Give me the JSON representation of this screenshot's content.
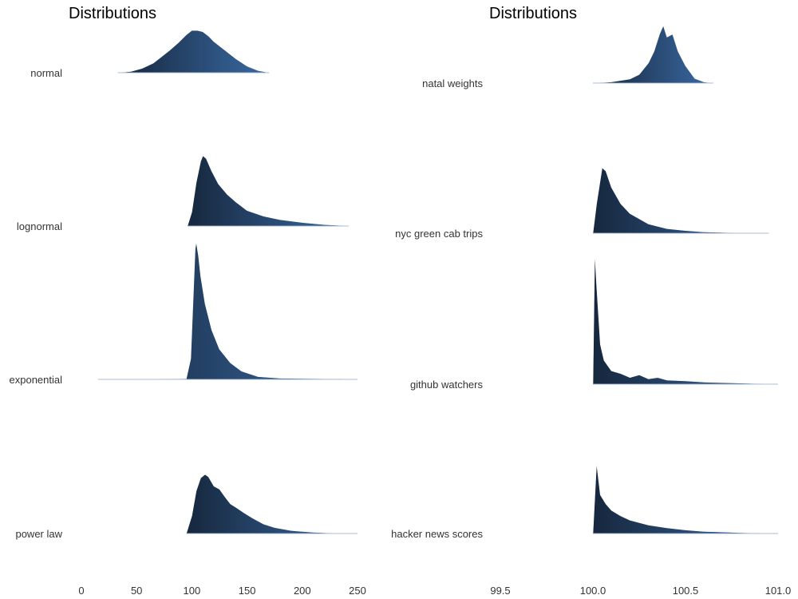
{
  "chart_data": [
    {
      "type": "area",
      "subtype": "ridgeline",
      "title": "Distributions",
      "xlabel": "",
      "ylabel": "",
      "xlim": [
        0,
        250
      ],
      "xticks": [
        0,
        50,
        100,
        150,
        200,
        250
      ],
      "xtick_labels": [
        "0",
        "50",
        "100",
        "150",
        "200",
        "250"
      ],
      "categories": [
        "normal",
        "lognormal",
        "exponential",
        "power law"
      ],
      "series": [
        {
          "name": "normal",
          "x": [
            33,
            45,
            55,
            65,
            72,
            80,
            88,
            95,
            100,
            105,
            110,
            115,
            120,
            130,
            140,
            150,
            160,
            170
          ],
          "density": [
            0,
            0.03,
            0.1,
            0.22,
            0.36,
            0.52,
            0.7,
            0.88,
            0.98,
            0.98,
            0.95,
            0.85,
            0.72,
            0.52,
            0.32,
            0.15,
            0.05,
            0
          ]
        },
        {
          "name": "lognormal",
          "x": [
            96,
            100,
            104,
            108,
            110,
            113,
            118,
            124,
            132,
            140,
            150,
            165,
            180,
            200,
            220,
            240,
            242
          ],
          "density": [
            0,
            0.2,
            0.62,
            0.92,
            1.0,
            0.96,
            0.78,
            0.6,
            0.45,
            0.34,
            0.22,
            0.14,
            0.09,
            0.05,
            0.02,
            0.005,
            0
          ]
        },
        {
          "name": "exponential",
          "x": [
            15,
            50,
            95,
            99,
            101,
            103,
            104,
            106,
            108,
            112,
            118,
            125,
            135,
            145,
            160,
            180,
            230,
            250
          ],
          "density": [
            0,
            0.001,
            0.005,
            0.15,
            0.55,
            0.95,
            1.0,
            0.9,
            0.75,
            0.55,
            0.36,
            0.22,
            0.12,
            0.06,
            0.02,
            0.008,
            0.004,
            0
          ]
        },
        {
          "name": "power law",
          "x": [
            95,
            100,
            104,
            108,
            112,
            115,
            120,
            125,
            130,
            135,
            140,
            148,
            155,
            165,
            175,
            190,
            210,
            230,
            250
          ],
          "density": [
            0,
            0.3,
            0.72,
            0.94,
            1.0,
            0.96,
            0.8,
            0.75,
            0.62,
            0.5,
            0.44,
            0.34,
            0.26,
            0.16,
            0.1,
            0.05,
            0.02,
            0.005,
            0
          ]
        }
      ],
      "color_dark": "#16273d",
      "color_light": "#3a6aa3",
      "grid": false
    },
    {
      "type": "area",
      "subtype": "ridgeline",
      "title": "Distributions",
      "xlabel": "",
      "ylabel": "",
      "xlim": [
        99.5,
        101.0
      ],
      "xticks": [
        99.5,
        100.0,
        100.5,
        101.0
      ],
      "xtick_labels": [
        "99.5",
        "100.0",
        "100.5",
        "101.0"
      ],
      "categories": [
        "natal weights",
        "nyc green cab trips",
        "github watchers",
        "hacker news scores"
      ],
      "series": [
        {
          "name": "natal weights",
          "x": [
            100.0,
            100.1,
            100.2,
            100.25,
            100.3,
            100.33,
            100.36,
            100.38,
            100.4,
            100.43,
            100.46,
            100.5,
            100.55,
            100.6,
            100.65
          ],
          "density": [
            0,
            0.02,
            0.07,
            0.15,
            0.35,
            0.55,
            0.85,
            1.0,
            0.8,
            0.85,
            0.55,
            0.3,
            0.08,
            0.02,
            0
          ]
        },
        {
          "name": "nyc green cab trips",
          "x": [
            100.0,
            100.02,
            100.05,
            100.07,
            100.1,
            100.15,
            100.2,
            100.3,
            100.4,
            100.5,
            100.6,
            100.8,
            100.95
          ],
          "density": [
            0,
            0.45,
            1.0,
            0.95,
            0.7,
            0.45,
            0.3,
            0.14,
            0.07,
            0.04,
            0.02,
            0.005,
            0
          ]
        },
        {
          "name": "github watchers",
          "x": [
            100.0,
            100.01,
            100.02,
            100.04,
            100.06,
            100.1,
            100.15,
            100.2,
            100.25,
            100.3,
            100.35,
            100.4,
            100.5,
            100.6,
            100.8,
            101.0
          ],
          "density": [
            0,
            1.0,
            0.75,
            0.3,
            0.18,
            0.1,
            0.08,
            0.05,
            0.07,
            0.04,
            0.05,
            0.03,
            0.025,
            0.015,
            0.008,
            0
          ]
        },
        {
          "name": "hacker news scores",
          "x": [
            100.0,
            100.02,
            100.04,
            100.07,
            100.1,
            100.15,
            100.2,
            100.3,
            100.4,
            100.5,
            100.6,
            100.8,
            101.0
          ],
          "density": [
            0,
            1.0,
            0.55,
            0.42,
            0.33,
            0.25,
            0.19,
            0.12,
            0.08,
            0.05,
            0.03,
            0.012,
            0
          ]
        }
      ],
      "color_dark": "#16273d",
      "color_light": "#3a6aa3",
      "grid": false
    }
  ]
}
